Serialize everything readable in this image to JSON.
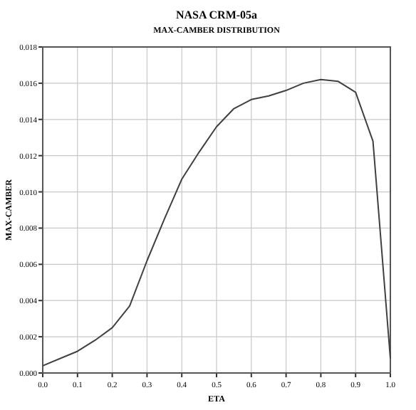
{
  "chart_data": {
    "type": "line",
    "title": "NASA CRM-05a",
    "subtitle": "MAX-CAMBER DISTRIBUTION",
    "xlabel": "ETA",
    "ylabel": "MAX-CAMBER",
    "x": [
      0,
      0.1,
      0.15,
      0.2,
      0.25,
      0.3,
      0.35,
      0.4,
      0.45,
      0.5,
      0.55,
      0.6,
      0.65,
      0.7,
      0.75,
      0.8,
      0.85,
      0.9,
      0.95,
      1.0
    ],
    "series": [
      {
        "color": "#404040",
        "values": [
          0.0004,
          0.0012,
          0.0018,
          0.0025,
          0.0037,
          0.0062,
          0.0085,
          0.0107,
          0.0122,
          0.0136,
          0.0146,
          0.0151,
          0.0153,
          0.0156,
          0.016,
          0.0162,
          0.0161,
          0.0155,
          0.0128,
          0.0008
        ]
      }
    ],
    "xlim": [
      0,
      1
    ],
    "xticks": [
      {
        "value": 0,
        "label": "0.0"
      },
      0.1,
      0.2,
      0.3,
      0.4,
      0.5,
      0.6,
      0.7,
      0.8,
      0.9,
      {
        "value": 1,
        "label": "1.0"
      }
    ],
    "ylim": [
      0,
      0.018
    ],
    "yticks": [
      {
        "value": 0,
        "label": "0.000"
      },
      0.002,
      0.004,
      0.006,
      0.008,
      {
        "value": 0.01,
        "label": "0.010"
      },
      0.012,
      0.014,
      0.016,
      0.018
    ],
    "grid": true,
    "line_style": "solid",
    "marker": "none"
  }
}
